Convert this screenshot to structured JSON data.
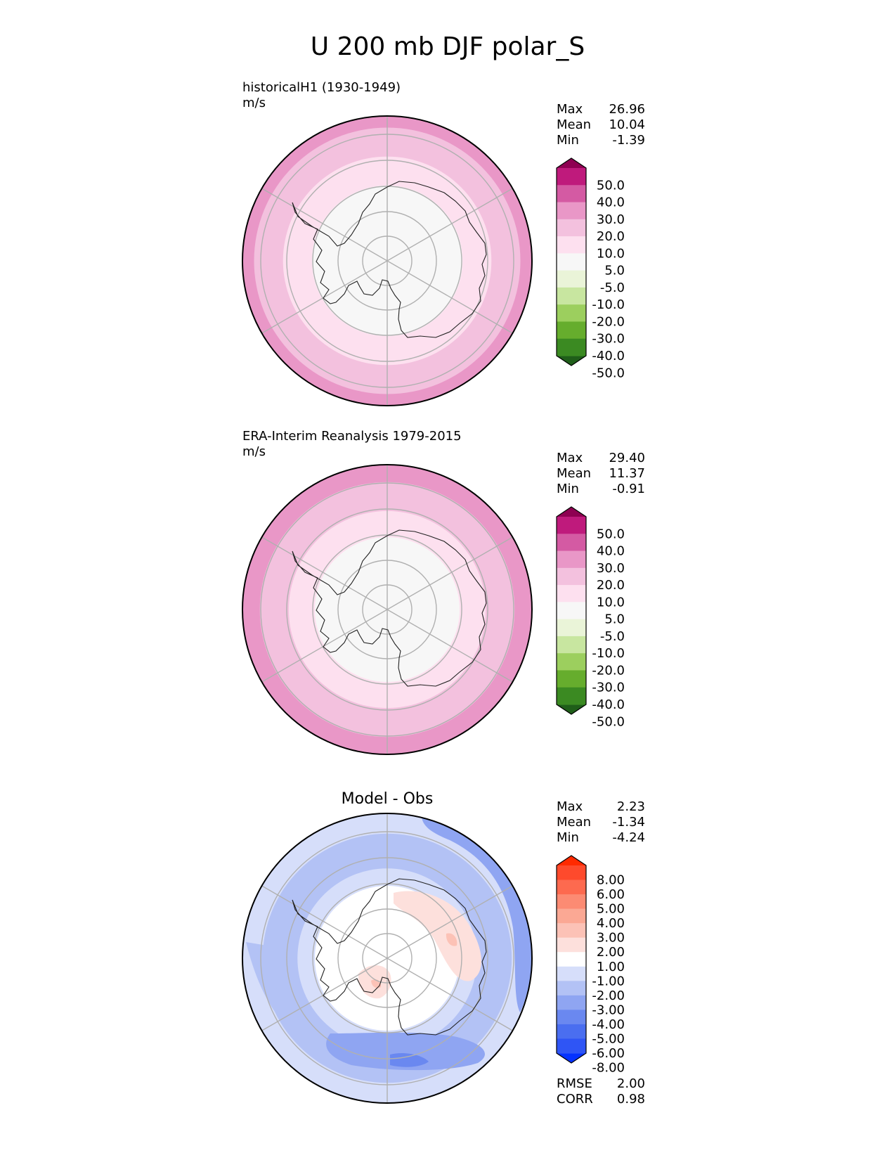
{
  "title": "U 200 mb DJF polar_S",
  "chart_data": [
    {
      "type": "heatmap",
      "projection": "south-polar-stereographic",
      "title": "historicalH1 (1930-1949)",
      "units": "m/s",
      "stats": {
        "max_label": "Max",
        "max": "26.96",
        "mean_label": "Mean",
        "mean": "10.04",
        "min_label": "Min",
        "min": "-1.39"
      },
      "colorbar": {
        "colors": [
          "#1f5e19",
          "#3b8a22",
          "#66ad2d",
          "#9ccf5e",
          "#c8e6a0",
          "#eaf4d8",
          "#f7f7f7",
          "#fde0ef",
          "#f3c1de",
          "#e997c7",
          "#d45aa3",
          "#bf1a7c",
          "#8e0152"
        ],
        "tick_labels": [
          "-50.0",
          "-40.0",
          "-30.0",
          "-20.0",
          "-10.0",
          "-5.0",
          "5.0",
          "10.0",
          "20.0",
          "30.0",
          "40.0",
          "50.0"
        ]
      },
      "rings": [
        {
          "fraction": 1.0,
          "level": "20.0 to 30.0",
          "color": "#e997c7"
        },
        {
          "fraction": 0.92,
          "level": "10.0 to 20.0",
          "color": "#f3c1de"
        },
        {
          "fraction": 0.72,
          "level": "5.0 to 10.0",
          "color": "#fde0ef"
        },
        {
          "fraction": 0.52,
          "level": "-5.0 to 5.0",
          "color": "#f7f7f7"
        }
      ]
    },
    {
      "type": "heatmap",
      "projection": "south-polar-stereographic",
      "title": "ERA-Interim Reanalysis 1979-2015",
      "units": "m/s",
      "stats": {
        "max_label": "Max",
        "max": "29.40",
        "mean_label": "Mean",
        "mean": "11.37",
        "min_label": "Min",
        "min": "-0.91"
      },
      "colorbar": {
        "colors": [
          "#1f5e19",
          "#3b8a22",
          "#66ad2d",
          "#9ccf5e",
          "#c8e6a0",
          "#eaf4d8",
          "#f7f7f7",
          "#fde0ef",
          "#f3c1de",
          "#e997c7",
          "#d45aa3",
          "#bf1a7c",
          "#8e0152"
        ],
        "tick_labels": [
          "-50.0",
          "-40.0",
          "-30.0",
          "-20.0",
          "-10.0",
          "-5.0",
          "5.0",
          "10.0",
          "20.0",
          "30.0",
          "40.0",
          "50.0"
        ]
      },
      "rings": [
        {
          "fraction": 1.0,
          "level": "20.0 to 30.0",
          "color": "#e997c7"
        },
        {
          "fraction": 0.88,
          "level": "10.0 to 20.0",
          "color": "#f3c1de"
        },
        {
          "fraction": 0.68,
          "level": "5.0 to 10.0",
          "color": "#fde0ef"
        },
        {
          "fraction": 0.5,
          "level": "-5.0 to 5.0",
          "color": "#f7f7f7"
        }
      ]
    },
    {
      "type": "heatmap",
      "projection": "south-polar-stereographic",
      "title": "Model - Obs",
      "units": "",
      "stats": {
        "max_label": "Max",
        "max": "2.23",
        "mean_label": "Mean",
        "mean": "-1.34",
        "min_label": "Min",
        "min": "-4.24"
      },
      "metrics": {
        "rmse_label": "RMSE",
        "rmse": "2.00",
        "corr_label": "CORR",
        "corr": "0.98"
      },
      "colorbar": {
        "colors": [
          "#0432ff",
          "#2f55f5",
          "#4a6ef0",
          "#6a88f0",
          "#8fa5f2",
          "#b3c2f5",
          "#d6defa",
          "#ffffff",
          "#fde0dc",
          "#fcc2b6",
          "#fba894",
          "#fc8b73",
          "#fd6a4f",
          "#fe4a2c",
          "#ff2a00"
        ],
        "tick_labels": [
          "-8.00",
          "-6.00",
          "-5.00",
          "-4.00",
          "-3.00",
          "-2.00",
          "-1.00",
          "1.00",
          "2.00",
          "3.00",
          "4.00",
          "5.00",
          "6.00",
          "8.00"
        ]
      },
      "rings": [
        {
          "fraction": 1.0,
          "level": "-2.00 to -1.00",
          "color": "#d6defa"
        },
        {
          "fraction": 0.86,
          "level": "-3.00 to -2.00",
          "color": "#b3c2f5"
        },
        {
          "fraction": 0.62,
          "level": "-2.00 to -1.00",
          "color": "#d6defa"
        },
        {
          "fraction": 0.5,
          "level": "-1.00 to 1.00",
          "color": "#ffffff"
        }
      ]
    }
  ]
}
